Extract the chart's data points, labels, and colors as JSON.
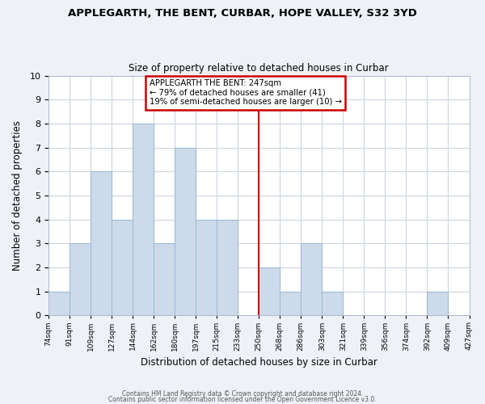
{
  "title": "APPLEGARTH, THE BENT, CURBAR, HOPE VALLEY, S32 3YD",
  "subtitle": "Size of property relative to detached houses in Curbar",
  "xlabel": "Distribution of detached houses by size in Curbar",
  "ylabel": "Number of detached properties",
  "footer_line1": "Contains HM Land Registry data © Crown copyright and database right 2024.",
  "footer_line2": "Contains public sector information licensed under the Open Government Licence v3.0.",
  "bin_labels": [
    "74sqm",
    "91sqm",
    "109sqm",
    "127sqm",
    "144sqm",
    "162sqm",
    "180sqm",
    "197sqm",
    "215sqm",
    "233sqm",
    "250sqm",
    "268sqm",
    "286sqm",
    "303sqm",
    "321sqm",
    "339sqm",
    "356sqm",
    "374sqm",
    "392sqm",
    "409sqm",
    "427sqm"
  ],
  "bar_values": [
    1,
    3,
    6,
    4,
    8,
    3,
    7,
    4,
    4,
    0,
    2,
    1,
    3,
    1,
    0,
    0,
    0,
    0,
    1,
    0
  ],
  "bar_color": "#ccdaea",
  "bar_edge_color": "#9ab8d0",
  "marker_bin_index": 10,
  "marker_line_color": "#cc0000",
  "annotation_title": "APPLEGARTH THE BENT: 247sqm",
  "annotation_line1": "← 79% of detached houses are smaller (41)",
  "annotation_line2": "19% of semi-detached houses are larger (10) →",
  "annotation_box_facecolor": "#ffffff",
  "annotation_box_edgecolor": "#cc0000",
  "ylim": [
    0,
    10
  ],
  "yticks": [
    0,
    1,
    2,
    3,
    4,
    5,
    6,
    7,
    8,
    9,
    10
  ],
  "bg_color": "#eef2f7",
  "plot_bg_color": "#ffffff",
  "grid_color": "#ccd5e0",
  "title_fontsize": 9.5,
  "subtitle_fontsize": 8.5
}
